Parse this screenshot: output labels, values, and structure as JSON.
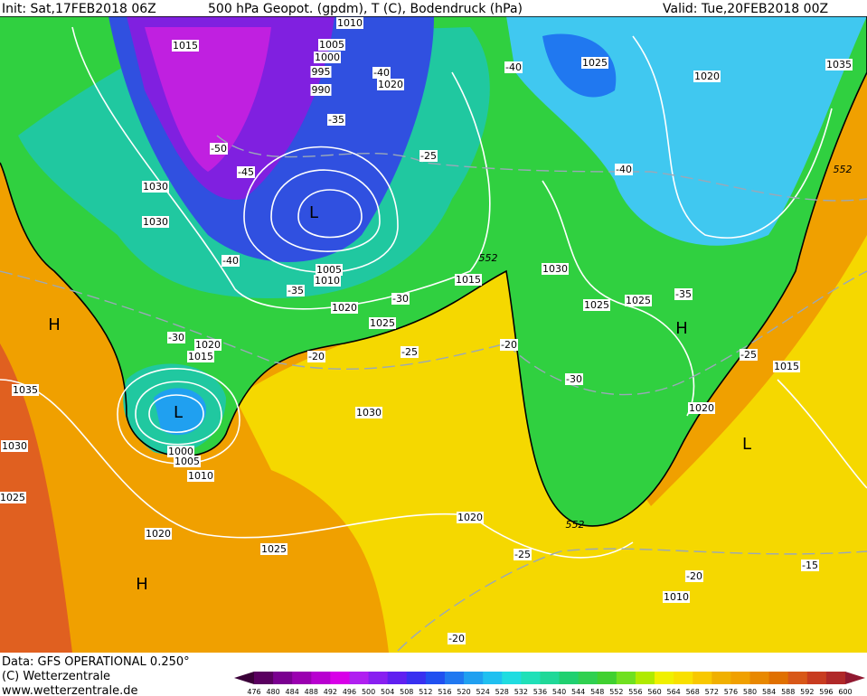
{
  "header": {
    "init": "Init: Sat,17FEB2018 06Z",
    "title": "500 hPa Geopot. (gpdm), T (C), Bodendruck (hPa)",
    "valid": "Valid: Tue,20FEB2018 00Z"
  },
  "footer": {
    "data": "Data: GFS OPERATIONAL 0.250°",
    "copyright": "(C) Wetterzentrale",
    "url": "www.wetterzentrale.de"
  },
  "map": {
    "pressure_labels": [
      "1010",
      "1015",
      "1005",
      "1000",
      "995",
      "990",
      "1020",
      "1025",
      "1020",
      "1035",
      "1030",
      "1030",
      "1030",
      "1025",
      "1025",
      "1015",
      "1020",
      "1025",
      "1020",
      "1015",
      "1035",
      "1030",
      "1030",
      "1020",
      "1015",
      "1005",
      "1000",
      "1010",
      "1025",
      "1020",
      "1020",
      "1025",
      "1010",
      "1010",
      "1005"
    ],
    "temperature_labels": [
      "-40",
      "-40",
      "-35",
      "-25",
      "-50",
      "-45",
      "-40",
      "-40",
      "-35",
      "-30",
      "-35",
      "-30",
      "-20",
      "-25",
      "-20",
      "-30",
      "-25",
      "-25",
      "-20",
      "-15",
      "-20"
    ],
    "geopotential_labels": [
      "552",
      "552",
      "552"
    ],
    "centers": [
      "H",
      "L",
      "L",
      "H",
      "L",
      "H"
    ]
  },
  "colorbar": {
    "labels": [
      476,
      480,
      484,
      488,
      492,
      496,
      500,
      504,
      508,
      512,
      516,
      520,
      524,
      528,
      532,
      536,
      540,
      544,
      548,
      552,
      556,
      560,
      564,
      568,
      572,
      576,
      580,
      584,
      588,
      592,
      596,
      600
    ],
    "colors": [
      "#3a0038",
      "#5a0060",
      "#7a0090",
      "#9a00b0",
      "#b800d0",
      "#d800e8",
      "#b020f0",
      "#8820f0",
      "#6020f0",
      "#3830f0",
      "#2050f0",
      "#2078f0",
      "#20a0f0",
      "#20c0f0",
      "#20dce0",
      "#20e0b8",
      "#20d898",
      "#20d070",
      "#30d050",
      "#40d030",
      "#70e020",
      "#b0ea00",
      "#f0f000",
      "#f8e000",
      "#f8c800",
      "#f0b000",
      "#f0a000",
      "#e88800",
      "#e07000",
      "#d85818",
      "#c83c20",
      "#b02828",
      "#901830"
    ]
  }
}
